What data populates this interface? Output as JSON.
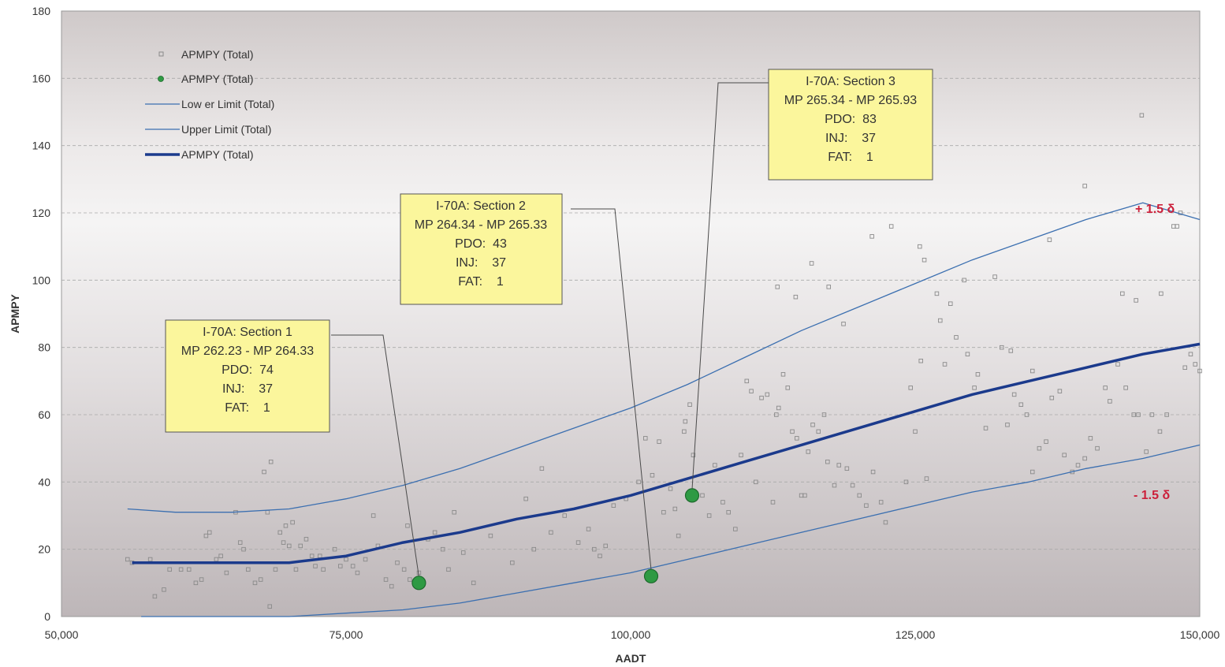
{
  "chart_data": {
    "type": "scatter",
    "xlabel": "AADT",
    "ylabel": "APMPY",
    "xlim": [
      50000,
      150000
    ],
    "ylim": [
      0,
      180
    ],
    "x_ticks": [
      50000,
      75000,
      100000,
      125000,
      150000
    ],
    "x_tick_labels": [
      "50,000",
      "75,000",
      "100,000",
      "125,000",
      "150,000"
    ],
    "y_ticks": [
      0,
      20,
      40,
      60,
      80,
      100,
      120,
      140,
      160,
      180
    ],
    "y_tick_labels": [
      "0",
      "20",
      "40",
      "60",
      "80",
      "100",
      "120",
      "140",
      "160",
      "180"
    ],
    "grid": "horizontal dashed",
    "legend_position": "top-left",
    "legend": [
      {
        "label": "APMPY (Total)",
        "kind": "square-marker"
      },
      {
        "label": "APMPY (Total)",
        "kind": "green-dot"
      },
      {
        "label": "Low er Limit (Total)",
        "kind": "thin-line"
      },
      {
        "label": "Upper Limit (Total)",
        "kind": "thin-line"
      },
      {
        "label": "APMPY (Total)",
        "kind": "thick-line"
      }
    ],
    "colors": {
      "points": "#8a8a8a",
      "highlight": "#2e9a43",
      "limit_lines": "#3b6fb0",
      "mean_line": "#1b3a8c",
      "annotation_fill": "#fbf69c",
      "sigma_label": "#cc1f3a"
    },
    "series": [
      {
        "name": "APMPY (Total)",
        "kind": "scatter",
        "points": [
          [
            55800,
            17
          ],
          [
            56200,
            16
          ],
          [
            57800,
            17
          ],
          [
            58200,
            6
          ],
          [
            59000,
            8
          ],
          [
            59500,
            14
          ],
          [
            60500,
            14
          ],
          [
            61200,
            14
          ],
          [
            61800,
            10
          ],
          [
            62300,
            11
          ],
          [
            62700,
            24
          ],
          [
            63000,
            25
          ],
          [
            63600,
            17
          ],
          [
            64000,
            18
          ],
          [
            64500,
            13
          ],
          [
            65300,
            31
          ],
          [
            65700,
            22
          ],
          [
            66000,
            20
          ],
          [
            66400,
            14
          ],
          [
            67000,
            10
          ],
          [
            67500,
            11
          ],
          [
            67800,
            43
          ],
          [
            68100,
            31
          ],
          [
            68300,
            3
          ],
          [
            68400,
            46
          ],
          [
            68800,
            14
          ],
          [
            69200,
            25
          ],
          [
            69500,
            22
          ],
          [
            69700,
            27
          ],
          [
            70000,
            21
          ],
          [
            70300,
            28
          ],
          [
            70600,
            14
          ],
          [
            71000,
            21
          ],
          [
            71500,
            23
          ],
          [
            72000,
            18
          ],
          [
            72300,
            15
          ],
          [
            72700,
            18
          ],
          [
            73000,
            14
          ],
          [
            74000,
            20
          ],
          [
            74500,
            15
          ],
          [
            75000,
            17
          ],
          [
            75600,
            15
          ],
          [
            76000,
            13
          ],
          [
            76700,
            17
          ],
          [
            77400,
            30
          ],
          [
            77800,
            21
          ],
          [
            78500,
            11
          ],
          [
            79000,
            9
          ],
          [
            79500,
            16
          ],
          [
            80100,
            14
          ],
          [
            80400,
            27
          ],
          [
            80600,
            11
          ],
          [
            81400,
            13
          ],
          [
            82200,
            23
          ],
          [
            82800,
            25
          ],
          [
            83500,
            20
          ],
          [
            84000,
            14
          ],
          [
            84500,
            31
          ],
          [
            85300,
            19
          ],
          [
            86200,
            10
          ],
          [
            87700,
            24
          ],
          [
            89600,
            16
          ],
          [
            90800,
            35
          ],
          [
            91500,
            20
          ],
          [
            92200,
            44
          ],
          [
            93000,
            25
          ],
          [
            94200,
            30
          ],
          [
            95400,
            22
          ],
          [
            96300,
            26
          ],
          [
            96800,
            20
          ],
          [
            97300,
            18
          ],
          [
            97800,
            21
          ],
          [
            98500,
            33
          ],
          [
            99600,
            35
          ],
          [
            100700,
            40
          ],
          [
            101300,
            53
          ],
          [
            101900,
            42
          ],
          [
            102500,
            52
          ],
          [
            102900,
            31
          ],
          [
            103500,
            38
          ],
          [
            103900,
            32
          ],
          [
            104200,
            24
          ],
          [
            104700,
            55
          ],
          [
            104800,
            58
          ],
          [
            105200,
            63
          ],
          [
            105500,
            48
          ],
          [
            106300,
            36
          ],
          [
            106900,
            30
          ],
          [
            107400,
            45
          ],
          [
            108100,
            34
          ],
          [
            108600,
            31
          ],
          [
            109200,
            26
          ],
          [
            109700,
            48
          ],
          [
            110200,
            70
          ],
          [
            110600,
            67
          ],
          [
            111000,
            40
          ],
          [
            111500,
            65
          ],
          [
            112000,
            66
          ],
          [
            112500,
            34
          ],
          [
            112800,
            60
          ],
          [
            113000,
            62
          ],
          [
            113400,
            72
          ],
          [
            113800,
            68
          ],
          [
            114200,
            55
          ],
          [
            114600,
            53
          ],
          [
            115000,
            36
          ],
          [
            115300,
            36
          ],
          [
            115600,
            49
          ],
          [
            116000,
            57
          ],
          [
            116500,
            55
          ],
          [
            117000,
            60
          ],
          [
            117300,
            46
          ],
          [
            117900,
            39
          ],
          [
            118300,
            45
          ],
          [
            119000,
            44
          ],
          [
            119500,
            39
          ],
          [
            120100,
            36
          ],
          [
            120700,
            33
          ],
          [
            121300,
            43
          ],
          [
            122000,
            34
          ],
          [
            122400,
            28
          ],
          [
            124200,
            40
          ],
          [
            124600,
            68
          ],
          [
            125000,
            55
          ],
          [
            125500,
            76
          ],
          [
            125800,
            106
          ],
          [
            126000,
            41
          ],
          [
            126900,
            96
          ],
          [
            127600,
            75
          ],
          [
            128100,
            93
          ],
          [
            128600,
            83
          ],
          [
            129300,
            100
          ],
          [
            129600,
            78
          ],
          [
            130200,
            68
          ],
          [
            130500,
            72
          ],
          [
            131200,
            56
          ],
          [
            132000,
            101
          ],
          [
            132600,
            80
          ],
          [
            133100,
            57
          ],
          [
            133700,
            66
          ],
          [
            134300,
            63
          ],
          [
            134800,
            60
          ],
          [
            135300,
            43
          ],
          [
            135900,
            50
          ],
          [
            136500,
            52
          ],
          [
            137000,
            65
          ],
          [
            137700,
            67
          ],
          [
            138100,
            48
          ],
          [
            138800,
            43
          ],
          [
            139300,
            45
          ],
          [
            139900,
            47
          ],
          [
            140400,
            53
          ],
          [
            141000,
            50
          ],
          [
            141700,
            68
          ],
          [
            142100,
            64
          ],
          [
            142800,
            75
          ],
          [
            143500,
            68
          ],
          [
            144200,
            60
          ],
          [
            144600,
            60
          ],
          [
            145300,
            49
          ],
          [
            145800,
            60
          ],
          [
            146500,
            55
          ],
          [
            147100,
            60
          ],
          [
            147700,
            116
          ],
          [
            148000,
            116
          ],
          [
            148300,
            120
          ],
          [
            148700,
            74
          ],
          [
            149200,
            78
          ],
          [
            149600,
            75
          ],
          [
            150000,
            73
          ],
          [
            144400,
            94
          ],
          [
            144900,
            149
          ],
          [
            143200,
            96
          ],
          [
            146600,
            96
          ],
          [
            139900,
            128
          ],
          [
            136800,
            112
          ],
          [
            125400,
            110
          ],
          [
            122900,
            116
          ],
          [
            121200,
            113
          ],
          [
            133400,
            79
          ],
          [
            118700,
            87
          ],
          [
            112900,
            98
          ],
          [
            114500,
            95
          ],
          [
            117400,
            98
          ],
          [
            115900,
            105
          ],
          [
            127200,
            88
          ],
          [
            135300,
            73
          ]
        ]
      },
      {
        "name": "APMPY (Total)",
        "kind": "highlight",
        "points": [
          [
            81400,
            10
          ],
          [
            101800,
            12
          ],
          [
            105400,
            36
          ]
        ]
      },
      {
        "name": "Low er Limit (Total)",
        "kind": "line",
        "points": [
          [
            57000,
            0
          ],
          [
            60000,
            0
          ],
          [
            65000,
            0
          ],
          [
            70000,
            0
          ],
          [
            75000,
            1
          ],
          [
            80000,
            2
          ],
          [
            85000,
            4
          ],
          [
            90000,
            7
          ],
          [
            95000,
            10
          ],
          [
            100000,
            13
          ],
          [
            105000,
            17
          ],
          [
            110000,
            21
          ],
          [
            115000,
            25
          ],
          [
            120000,
            29
          ],
          [
            125000,
            33
          ],
          [
            130000,
            37
          ],
          [
            135000,
            40
          ],
          [
            140000,
            44
          ],
          [
            145000,
            47
          ],
          [
            150000,
            51
          ]
        ]
      },
      {
        "name": "Upper Limit (Total)",
        "kind": "line",
        "points": [
          [
            55800,
            32
          ],
          [
            60000,
            31
          ],
          [
            65000,
            31
          ],
          [
            70000,
            32
          ],
          [
            75000,
            35
          ],
          [
            80000,
            39
          ],
          [
            85000,
            44
          ],
          [
            90000,
            50
          ],
          [
            95000,
            56
          ],
          [
            100000,
            62
          ],
          [
            105000,
            69
          ],
          [
            110000,
            77
          ],
          [
            115000,
            85
          ],
          [
            120000,
            92
          ],
          [
            125000,
            99
          ],
          [
            130000,
            106
          ],
          [
            135000,
            112
          ],
          [
            140000,
            118
          ],
          [
            145000,
            123
          ],
          [
            150000,
            118
          ]
        ]
      },
      {
        "name": "APMPY (Total)",
        "kind": "mean-line",
        "points": [
          [
            56200,
            16
          ],
          [
            60000,
            16
          ],
          [
            65000,
            16
          ],
          [
            70000,
            16
          ],
          [
            75000,
            18
          ],
          [
            80000,
            22
          ],
          [
            85000,
            25
          ],
          [
            90000,
            29
          ],
          [
            95000,
            32
          ],
          [
            100000,
            36
          ],
          [
            105000,
            41
          ],
          [
            110000,
            46
          ],
          [
            115000,
            51
          ],
          [
            120000,
            56
          ],
          [
            125000,
            61
          ],
          [
            130000,
            66
          ],
          [
            135000,
            70
          ],
          [
            140000,
            74
          ],
          [
            145000,
            78
          ],
          [
            150000,
            81
          ]
        ]
      }
    ],
    "annotations": [
      {
        "title": "I-70A: Section 1",
        "range": "MP 262.23 - MP 264.33",
        "pdo": "PDO:  74",
        "inj": "INJ:    37",
        "fat": "FAT:    1",
        "target": [
          81400,
          10
        ]
      },
      {
        "title": "I-70A: Section 2",
        "range": "MP 264.34 - MP 265.33",
        "pdo": "PDO:  43",
        "inj": "INJ:    37",
        "fat": "FAT:    1",
        "target": [
          101800,
          12
        ]
      },
      {
        "title": "I-70A: Section 3",
        "range": "MP 265.34 - MP 265.93",
        "pdo": "PDO:  83",
        "inj": "INJ:    37",
        "fat": "FAT:    1",
        "target": [
          105400,
          36
        ]
      }
    ],
    "band_labels": {
      "upper": "+ 1.5 δ",
      "lower": "- 1.5 δ"
    }
  }
}
